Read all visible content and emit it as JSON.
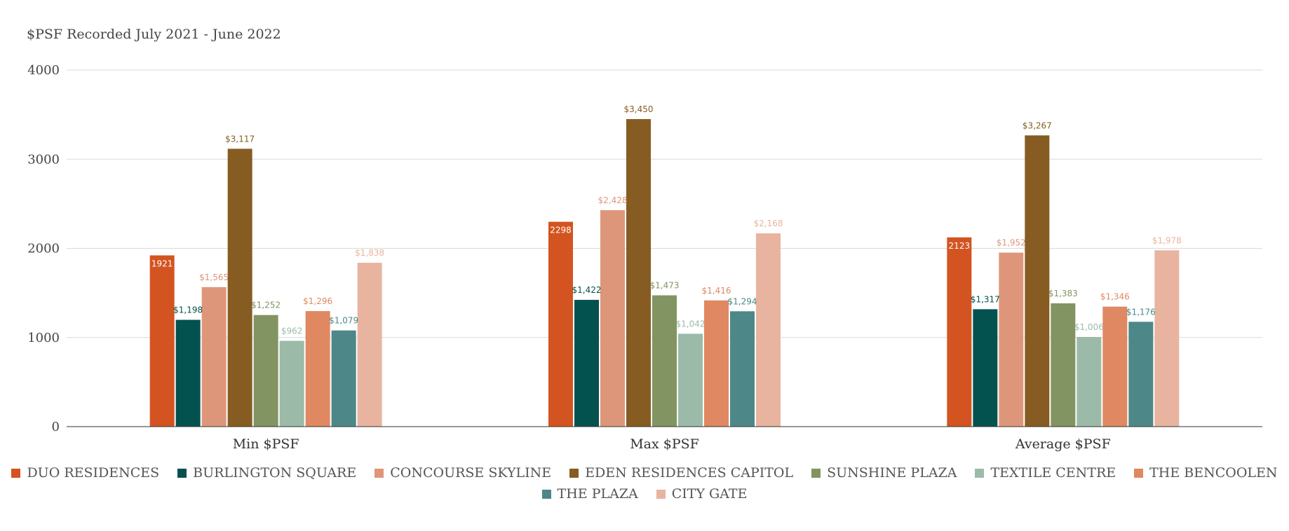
{
  "chart_data": {
    "type": "bar",
    "title": "$PSF Recorded July 2021 - June 2022",
    "categories": [
      "Min $PSF",
      "Max $PSF",
      "Average $PSF"
    ],
    "ylim": [
      0,
      4000
    ],
    "yticks": [
      "0",
      "1000",
      "2000",
      "3000",
      "4000"
    ],
    "grid": true,
    "legend_position": "bottom",
    "series": [
      {
        "name": "DUO RESIDENCES",
        "color": "#d35420",
        "values": [
          1921,
          2298,
          2123
        ],
        "labels": [
          "1921",
          "2298",
          "2123"
        ]
      },
      {
        "name": "BURLINGTON SQUARE",
        "color": "#04524f",
        "values": [
          1198,
          1422,
          1317
        ],
        "labels": [
          "$1,198",
          "$1,422",
          "$1,317"
        ]
      },
      {
        "name": "CONCOURSE SKYLINE",
        "color": "#de967a",
        "values": [
          1565,
          2428,
          1952
        ],
        "labels": [
          "$1,565",
          "$2,428",
          "$1,952"
        ]
      },
      {
        "name": "EDEN RESIDENCES CAPITOL",
        "color": "#865c22",
        "values": [
          3117,
          3450,
          3267
        ],
        "labels": [
          "$3,117",
          "$3,450",
          "$3,267"
        ]
      },
      {
        "name": "SUNSHINE PLAZA",
        "color": "#829462",
        "values": [
          1252,
          1473,
          1383
        ],
        "labels": [
          "$1,252",
          "$1,473",
          "$1,383"
        ]
      },
      {
        "name": "TEXTILE CENTRE",
        "color": "#9bbba8",
        "values": [
          962,
          1042,
          1006
        ],
        "labels": [
          "$962",
          "$1,042",
          "$1,006"
        ]
      },
      {
        "name": "THE BENCOOLEN",
        "color": "#e08862",
        "values": [
          1296,
          1416,
          1346
        ],
        "labels": [
          "$1,296",
          "$1,416",
          "$1,346"
        ]
      },
      {
        "name": "THE PLAZA",
        "color": "#4e8787",
        "values": [
          1079,
          1294,
          1176
        ],
        "labels": [
          "$1,079",
          "$1,294",
          "$1,176"
        ]
      },
      {
        "name": "CITY GATE",
        "color": "#e8b4a0",
        "values": [
          1838,
          2168,
          1978
        ],
        "labels": [
          "$1,838",
          "$2,168",
          "$1,978"
        ]
      }
    ]
  }
}
